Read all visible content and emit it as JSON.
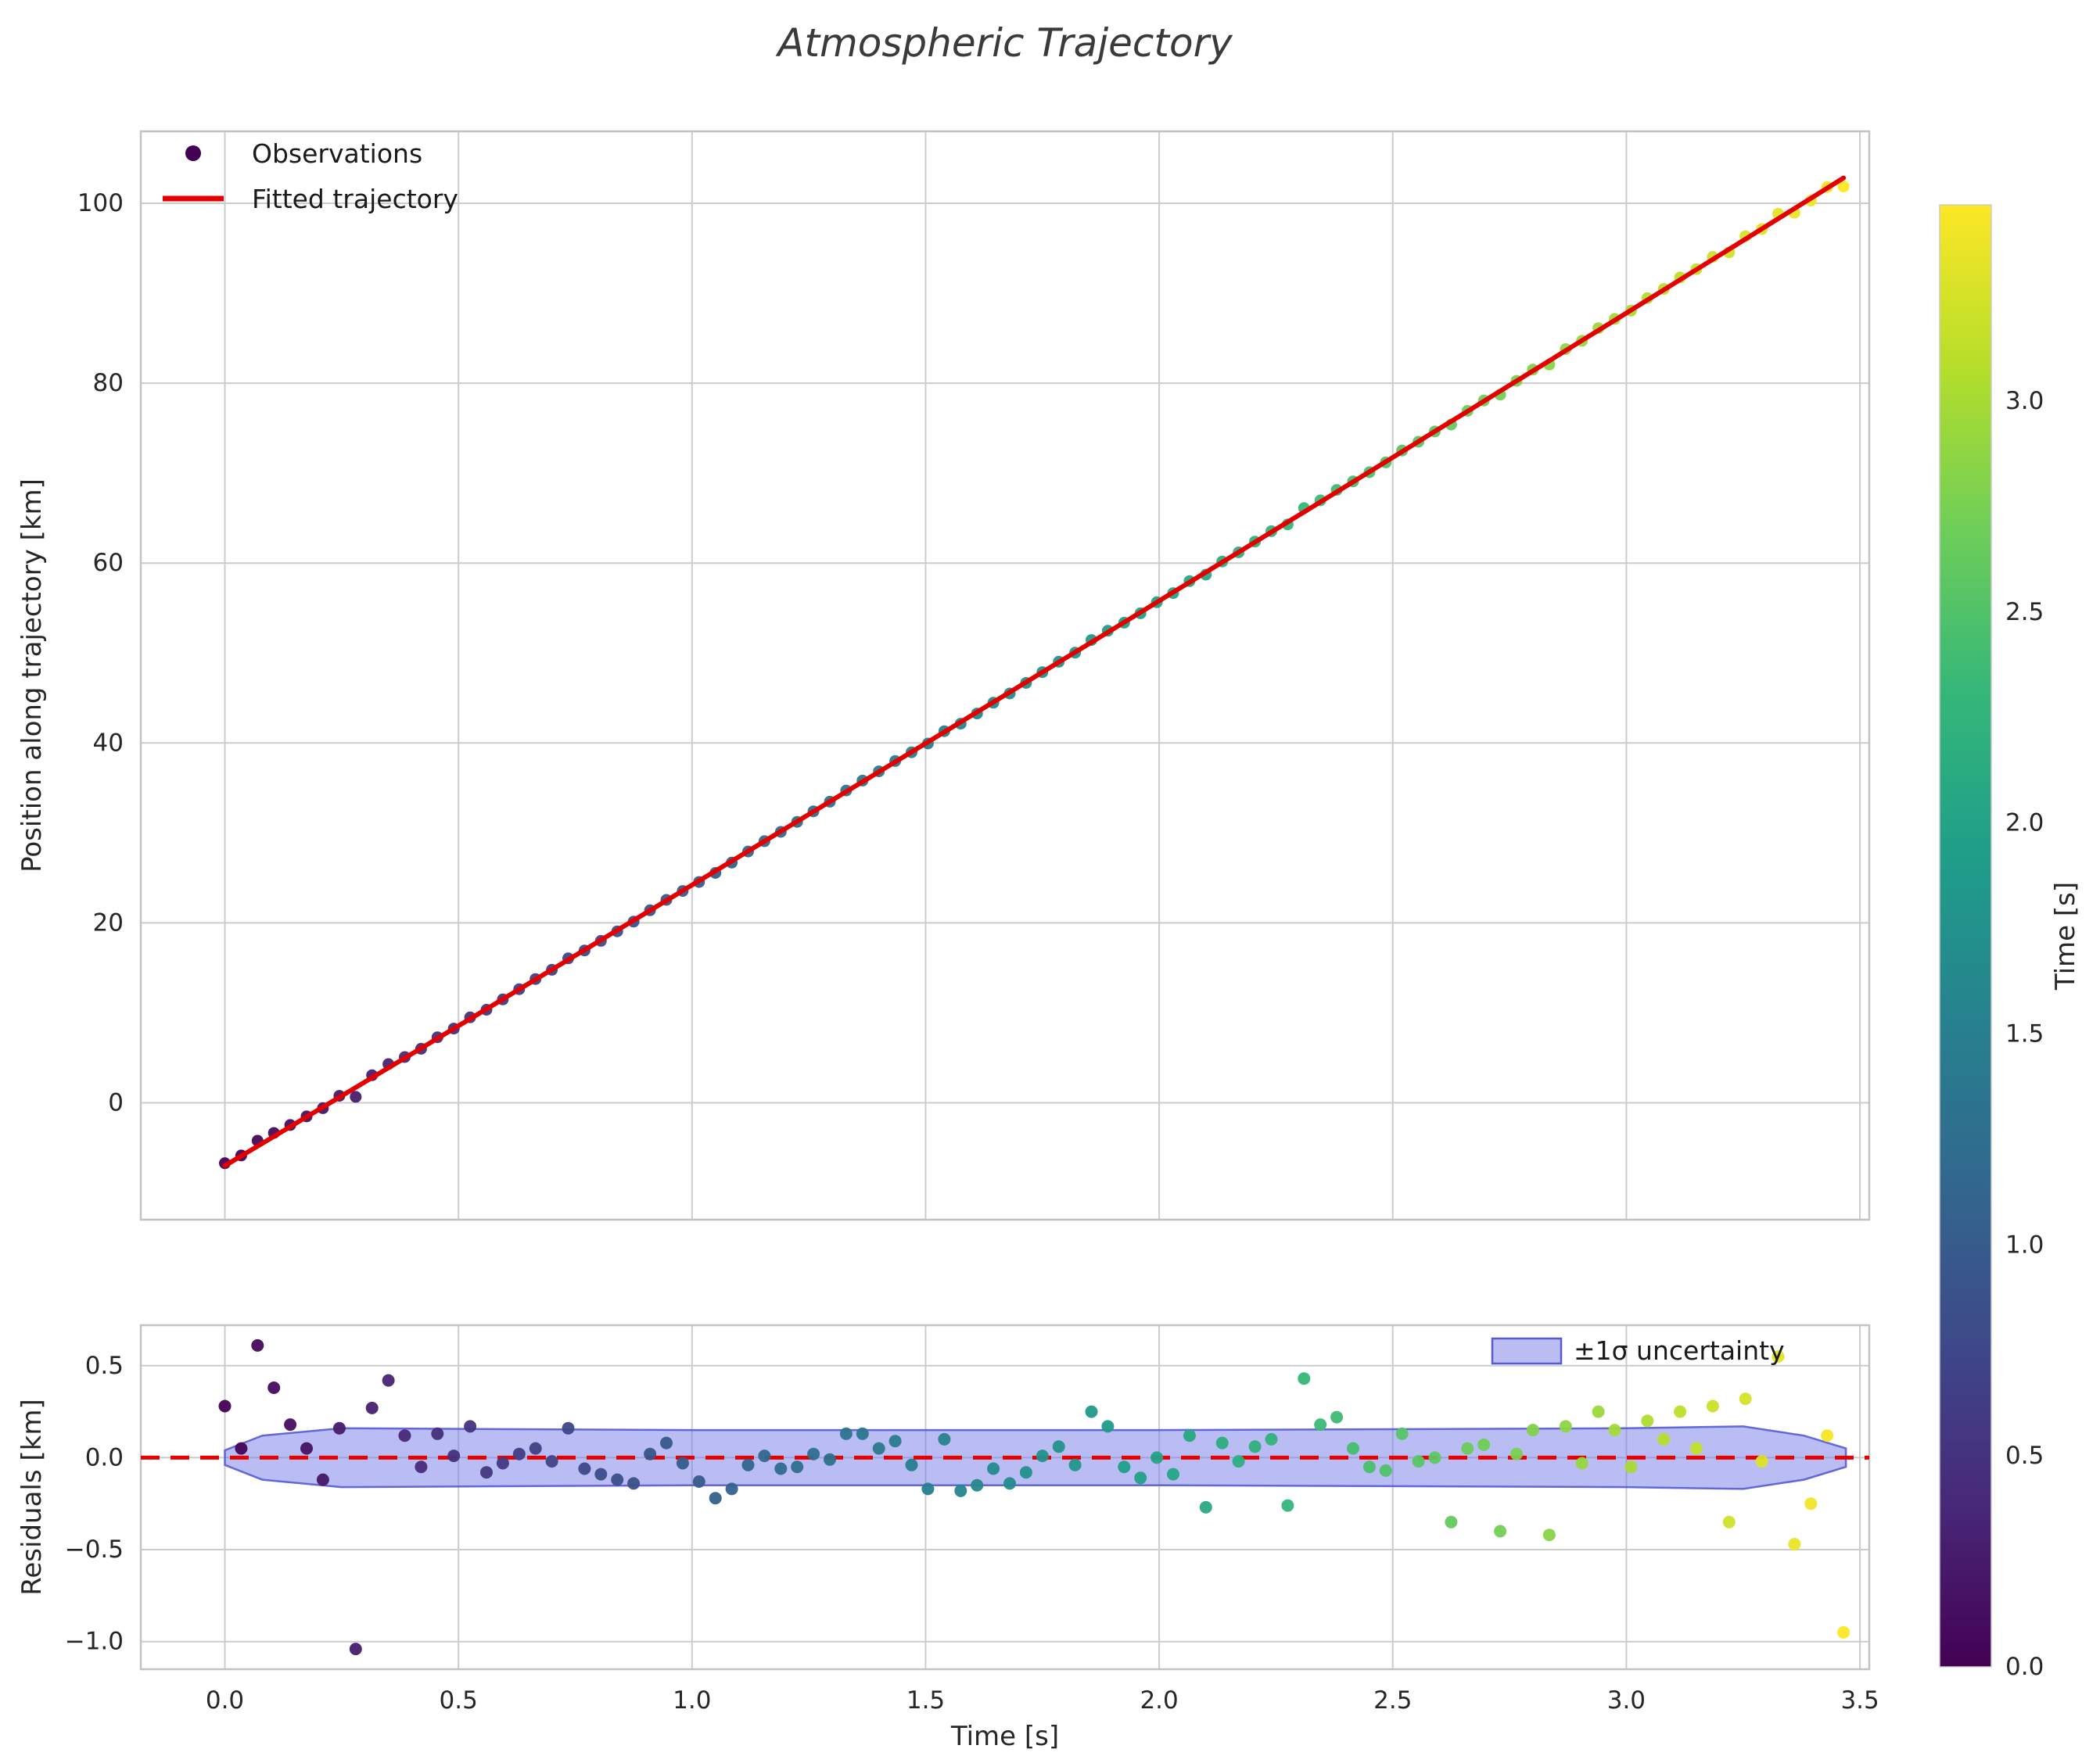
{
  "title": "Atmospheric Trajectory",
  "colors": {
    "fit_line": "#e50000",
    "zero_line": "#e50000",
    "grid": "#cccccc",
    "spine": "#c3c3c3",
    "tick_text": "#262626",
    "title_text": "#3a3a3a"
  },
  "chart_data": [
    {
      "type": "scatter",
      "name": "trajectory",
      "title": "",
      "xlabel": "",
      "ylabel": "Position along trajectory [km]",
      "xlim": [
        -0.18,
        3.52
      ],
      "ylim": [
        -13,
        108
      ],
      "xticks": [
        0.0,
        0.5,
        1.0,
        1.5,
        2.0,
        2.5,
        3.0,
        3.5
      ],
      "yticks": [
        0,
        20,
        40,
        60,
        80,
        100
      ],
      "x_tick_labels_shown": false,
      "grid": true,
      "marker_color_mapping": "viridis(t / colorbar.vmax)",
      "legend": {
        "position": "upper left",
        "entries": [
          {
            "label": "Observations",
            "marker": "point",
            "color": "#440154"
          },
          {
            "label": "Fitted trajectory",
            "marker": "line",
            "color": "#e50000"
          }
        ]
      },
      "fit_poly_coeffs_km": [
        -7.0,
        31.0,
        0.2
      ],
      "observation_rule": "position_km = c0 + c1*t + c2*t^2 + residual",
      "t_s": [
        0.0,
        0.035,
        0.07,
        0.105,
        0.14,
        0.175,
        0.21,
        0.245,
        0.28,
        0.315,
        0.35,
        0.385,
        0.42,
        0.455,
        0.49,
        0.525,
        0.56,
        0.595,
        0.63,
        0.665,
        0.7,
        0.735,
        0.77,
        0.805,
        0.84,
        0.875,
        0.91,
        0.945,
        0.98,
        1.015,
        1.05,
        1.085,
        1.12,
        1.155,
        1.19,
        1.225,
        1.26,
        1.295,
        1.33,
        1.365,
        1.4,
        1.435,
        1.47,
        1.505,
        1.54,
        1.575,
        1.61,
        1.645,
        1.68,
        1.715,
        1.75,
        1.785,
        1.82,
        1.855,
        1.89,
        1.925,
        1.96,
        1.995,
        2.03,
        2.065,
        2.1,
        2.135,
        2.17,
        2.205,
        2.24,
        2.275,
        2.31,
        2.345,
        2.38,
        2.415,
        2.45,
        2.485,
        2.52,
        2.555,
        2.59,
        2.625,
        2.66,
        2.695,
        2.73,
        2.765,
        2.8,
        2.835,
        2.87,
        2.905,
        2.94,
        2.975,
        3.01,
        3.045,
        3.08,
        3.115,
        3.15,
        3.185,
        3.22,
        3.255,
        3.29,
        3.325,
        3.36,
        3.395,
        3.43,
        3.465
      ],
      "residuals_km": [
        0.28,
        0.05,
        0.61,
        0.38,
        0.18,
        0.05,
        -0.12,
        0.16,
        -1.04,
        0.27,
        0.42,
        0.12,
        -0.05,
        0.13,
        0.01,
        0.17,
        -0.08,
        -0.03,
        0.02,
        0.05,
        -0.02,
        0.16,
        -0.06,
        -0.09,
        -0.12,
        -0.14,
        0.02,
        0.08,
        -0.03,
        -0.13,
        -0.22,
        -0.17,
        -0.04,
        0.01,
        -0.06,
        -0.05,
        0.02,
        -0.01,
        0.13,
        0.13,
        0.05,
        0.09,
        -0.04,
        -0.17,
        0.1,
        -0.18,
        -0.15,
        -0.06,
        -0.14,
        -0.08,
        0.01,
        0.06,
        -0.04,
        0.25,
        0.17,
        -0.05,
        -0.11,
        0.0,
        -0.09,
        0.12,
        -0.27,
        0.08,
        -0.02,
        0.06,
        0.1,
        -0.26,
        0.43,
        0.18,
        0.22,
        0.05,
        -0.05,
        -0.07,
        0.13,
        -0.02,
        0.0,
        -0.35,
        0.05,
        0.07,
        -0.4,
        0.02,
        0.15,
        -0.42,
        0.17,
        -0.03,
        0.25,
        0.15,
        -0.05,
        0.2,
        0.1,
        0.25,
        0.05,
        0.28,
        -0.35,
        0.32,
        -0.02,
        0.55,
        -0.47,
        -0.25,
        0.12,
        -0.95
      ]
    },
    {
      "type": "scatter",
      "name": "residuals",
      "title": "",
      "xlabel": "Time [s]",
      "ylabel": "Residuals [km]",
      "xlim": [
        -0.18,
        3.52
      ],
      "ylim": [
        -1.15,
        0.72
      ],
      "xticks": [
        0.0,
        0.5,
        1.0,
        1.5,
        2.0,
        2.5,
        3.0,
        3.5
      ],
      "yticks": [
        0.5,
        0.0,
        -0.5,
        -1.0
      ],
      "x_tick_labels_shown": true,
      "grid": true,
      "zero_line": {
        "y": 0.0,
        "style": "dashed",
        "color": "#e50000"
      },
      "band": {
        "label": "±1σ uncertainty",
        "fill": "#6f74e8",
        "edge": "#555bd6",
        "x": [
          0.0,
          0.08,
          0.25,
          1.0,
          2.0,
          3.0,
          3.25,
          3.38,
          3.47
        ],
        "halfwidth": [
          0.04,
          0.12,
          0.16,
          0.15,
          0.15,
          0.16,
          0.17,
          0.12,
          0.05
        ]
      },
      "legend": {
        "position": "upper right"
      },
      "points_note": "x = trajectory.t_s, y = trajectory.residuals_km, colors = viridis(t)"
    }
  ],
  "colorbar": {
    "label": "Time [s]",
    "vmin": 0.0,
    "vmax": 3.465,
    "ticks": [
      0.0,
      0.5,
      1.0,
      1.5,
      2.0,
      2.5,
      3.0
    ],
    "colormap": "viridis",
    "stops": [
      "#440154",
      "#482878",
      "#3e4989",
      "#31688e",
      "#26828e",
      "#1f9e89",
      "#35b779",
      "#6ece58",
      "#b5de2b",
      "#fde725"
    ]
  }
}
